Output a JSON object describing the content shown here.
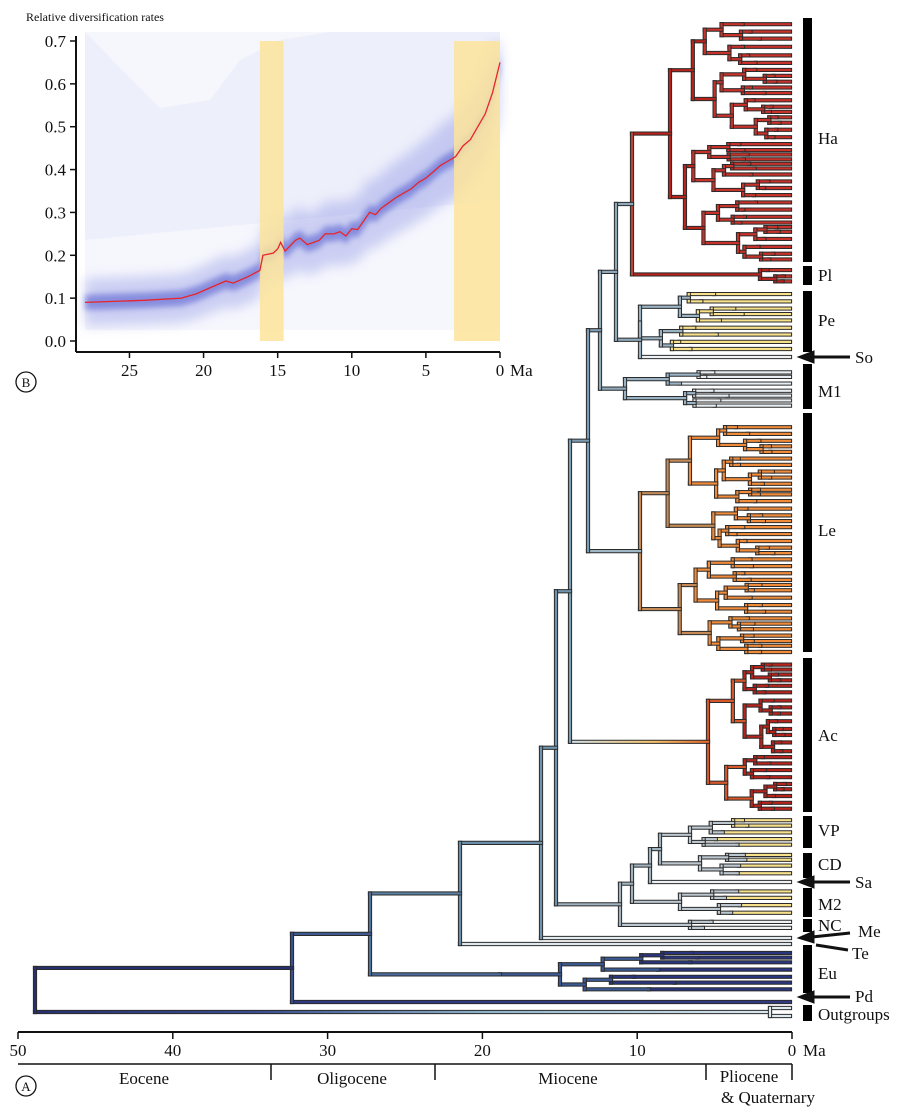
{
  "panel_a": {
    "label": "A",
    "axis_ticks": [
      "50",
      "40",
      "30",
      "20",
      "10",
      "0"
    ],
    "axis_unit": "Ma",
    "epochs": [
      "Eocene",
      "Oligocene",
      "Miocene",
      "Pliocene",
      "& Quaternary"
    ],
    "clades": [
      "Ha",
      "Pl",
      "Pe",
      "So",
      "M1",
      "Le",
      "Ac",
      "VP",
      "CD",
      "Sa",
      "M2",
      "NC",
      "Me",
      "Te",
      "Eu",
      "Pd",
      "Outgroups"
    ]
  },
  "panel_b": {
    "label": "B",
    "title": "Relative diversification rates",
    "y_ticks": [
      "0.7",
      "0.6",
      "0.5",
      "0.4",
      "0.3",
      "0.2",
      "0.1",
      "0.0"
    ],
    "x_ticks": [
      "25",
      "20",
      "15",
      "10",
      "5",
      "0"
    ],
    "x_unit": "Ma"
  },
  "colors": {
    "ancient": "#27306e",
    "mid": "#5d86a6",
    "pale": "#d9e8f0",
    "yellow": "#f6e08a",
    "orange": "#f08b3a",
    "red": "#b8231c",
    "rate_line": "#e8242a",
    "highlight": "#fde59a",
    "band": "#5b61d0"
  },
  "chart_data": {
    "type": "line",
    "title": "Relative diversification rates",
    "xlabel": "Ma",
    "ylabel": "",
    "xlim": [
      28,
      0
    ],
    "ylim": [
      0,
      0.7
    ],
    "highlight_intervals": [
      [
        16.2,
        14.6
      ],
      [
        3.1,
        0
      ]
    ],
    "series": [
      {
        "x": [
          28,
          24,
          21.5,
          20.5,
          19.5,
          18.5,
          18,
          17,
          16.2,
          16,
          15.3,
          15,
          14.8,
          14.5,
          13.8,
          13.5,
          13,
          12.2,
          11.8,
          11.2,
          10.8,
          10.4,
          10,
          9.6,
          9.2,
          8.8,
          8.4,
          8,
          7.4,
          7,
          6.5,
          6,
          5.5,
          5,
          4.5,
          4,
          3.5,
          3,
          2.5,
          2,
          1.5,
          1,
          0.5,
          0
        ],
        "y": [
          0.09,
          0.095,
          0.1,
          0.11,
          0.125,
          0.14,
          0.135,
          0.15,
          0.165,
          0.2,
          0.205,
          0.215,
          0.23,
          0.21,
          0.235,
          0.24,
          0.225,
          0.235,
          0.25,
          0.25,
          0.255,
          0.245,
          0.262,
          0.26,
          0.28,
          0.3,
          0.295,
          0.31,
          0.325,
          0.335,
          0.345,
          0.355,
          0.37,
          0.38,
          0.395,
          0.41,
          0.42,
          0.43,
          0.455,
          0.47,
          0.5,
          0.53,
          0.58,
          0.65
        ]
      }
    ]
  }
}
